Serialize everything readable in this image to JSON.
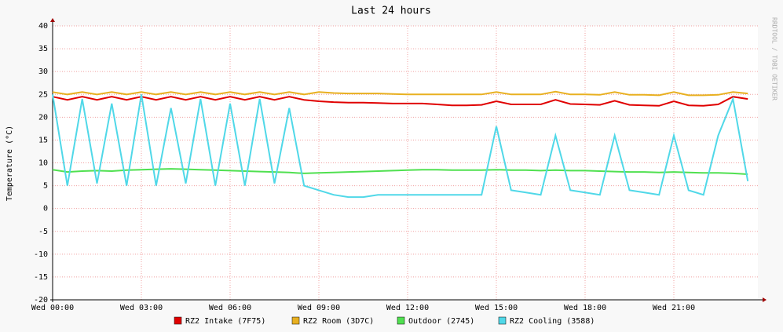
{
  "chart_data": {
    "type": "line",
    "title": "Last 24 hours",
    "y_label": "Temperature (°C)",
    "watermark": "RRDTOOL / TOBI OETIKER",
    "x": [
      0,
      0.5,
      1,
      1.5,
      2,
      2.5,
      3,
      3.5,
      4,
      4.5,
      5,
      5.5,
      6,
      6.5,
      7,
      7.5,
      8,
      8.5,
      9,
      9.5,
      10,
      10.5,
      11,
      11.5,
      12,
      12.5,
      13,
      13.5,
      14,
      14.5,
      15,
      15.5,
      16,
      16.5,
      17,
      17.5,
      18,
      18.5,
      19,
      19.5,
      20,
      20.5,
      21,
      21.5,
      22,
      22.5,
      23,
      23.5
    ],
    "xlim": [
      0,
      24
    ],
    "xticks": [
      {
        "value": 0,
        "label": "Wed 00:00"
      },
      {
        "value": 3,
        "label": "Wed 03:00"
      },
      {
        "value": 6,
        "label": "Wed 06:00"
      },
      {
        "value": 9,
        "label": "Wed 09:00"
      },
      {
        "value": 12,
        "label": "Wed 12:00"
      },
      {
        "value": 15,
        "label": "Wed 15:00"
      },
      {
        "value": 18,
        "label": "Wed 18:00"
      },
      {
        "value": 21,
        "label": "Wed 21:00"
      }
    ],
    "ylim": [
      -20,
      40
    ],
    "yticks": [
      -20,
      -15,
      -10,
      -5,
      0,
      5,
      10,
      15,
      20,
      25,
      30,
      35,
      40
    ],
    "grid": true,
    "series": [
      {
        "name": "RZ2 Intake (7F75)",
        "color": "#e00000",
        "values": [
          24.5,
          23.8,
          24.5,
          23.8,
          24.5,
          23.8,
          24.5,
          23.8,
          24.5,
          23.8,
          24.5,
          23.8,
          24.5,
          23.8,
          24.5,
          23.8,
          24.5,
          23.8,
          23.5,
          23.3,
          23.2,
          23.2,
          23.1,
          23,
          23,
          23,
          22.8,
          22.6,
          22.6,
          22.7,
          23.5,
          22.8,
          22.8,
          22.8,
          23.8,
          22.9,
          22.8,
          22.7,
          23.6,
          22.7,
          22.6,
          22.5,
          23.5,
          22.6,
          22.5,
          22.8,
          24.5,
          24
        ]
      },
      {
        "name": "RZ2 Room (3D7C)",
        "color": "#e8b020",
        "values": [
          25.5,
          25,
          25.5,
          25,
          25.5,
          25,
          25.5,
          25,
          25.5,
          25,
          25.5,
          25,
          25.5,
          25,
          25.5,
          25,
          25.5,
          25,
          25.5,
          25.3,
          25.2,
          25.2,
          25.2,
          25.1,
          25,
          25,
          25,
          25,
          25,
          25,
          25.5,
          25,
          25,
          25,
          25.6,
          25,
          25,
          24.9,
          25.5,
          24.9,
          24.9,
          24.8,
          25.5,
          24.8,
          24.8,
          24.9,
          25.5,
          25.2
        ]
      },
      {
        "name": "Outdoor (2745)",
        "color": "#50e050",
        "values": [
          8.5,
          8,
          8.2,
          8.3,
          8.2,
          8.4,
          8.5,
          8.6,
          8.7,
          8.6,
          8.5,
          8.4,
          8.3,
          8.2,
          8.1,
          8,
          7.9,
          7.7,
          7.8,
          7.9,
          8,
          8.1,
          8.2,
          8.3,
          8.4,
          8.5,
          8.5,
          8.4,
          8.4,
          8.4,
          8.5,
          8.4,
          8.4,
          8.3,
          8.4,
          8.3,
          8.3,
          8.2,
          8.1,
          8,
          8,
          7.9,
          8,
          7.9,
          7.8,
          7.8,
          7.7,
          7.5
        ]
      },
      {
        "name": "RZ2 Cooling (3588)",
        "color": "#50d8e8",
        "values": [
          25,
          5,
          24,
          5.5,
          23,
          5,
          25,
          5,
          22,
          5.5,
          24,
          5,
          23,
          5,
          24,
          5.5,
          22,
          5,
          4,
          3,
          2.5,
          2.5,
          3,
          3,
          3,
          3,
          3,
          3,
          3,
          3,
          18,
          4,
          3.5,
          3,
          16,
          4,
          3.5,
          3,
          16,
          4,
          3.5,
          3,
          16,
          4,
          3,
          16,
          24,
          6
        ]
      }
    ]
  }
}
